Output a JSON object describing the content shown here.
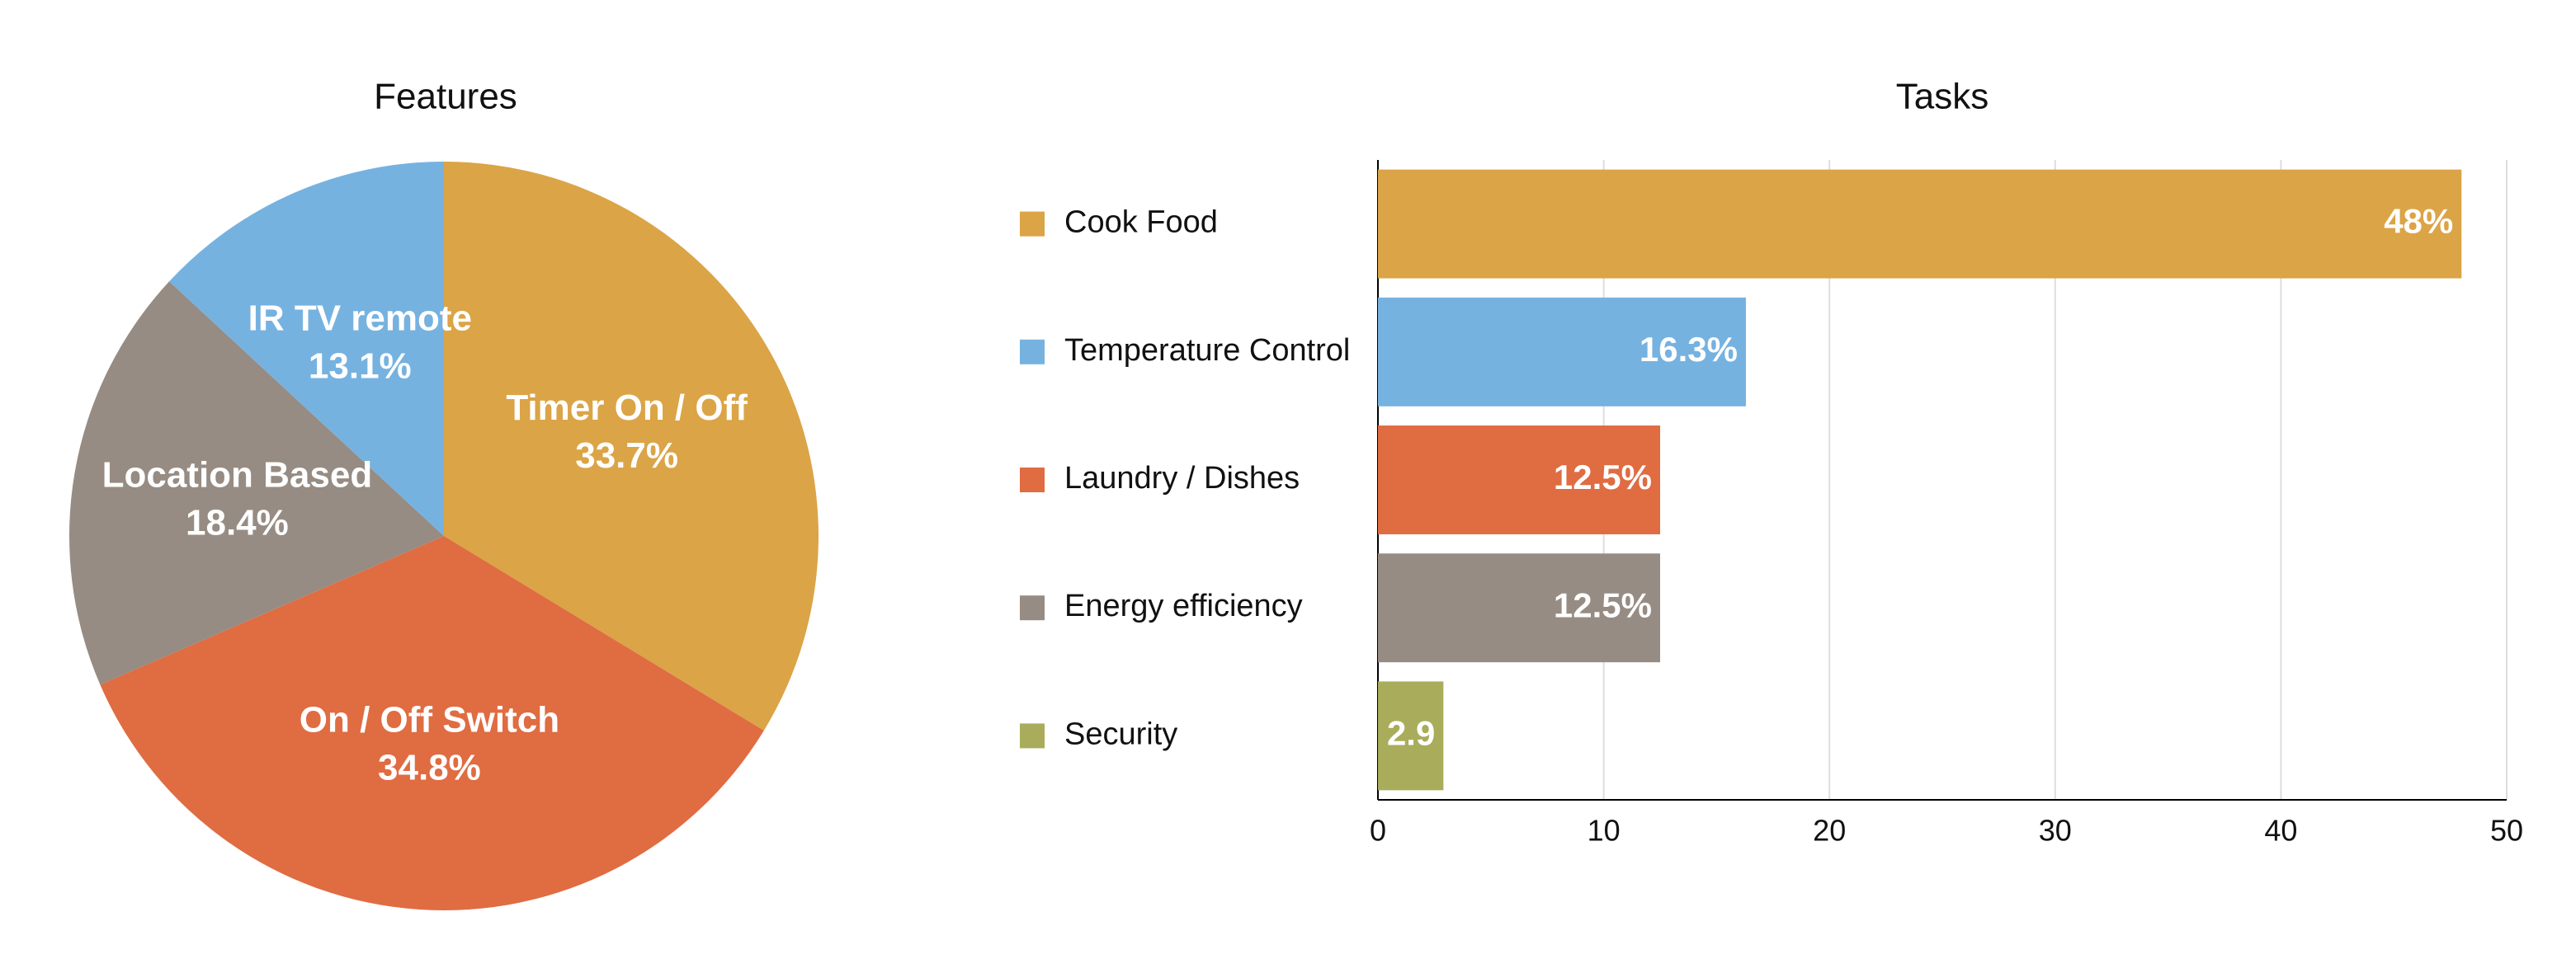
{
  "chart_data": [
    {
      "type": "pie",
      "title": "Features",
      "categories": [
        "Timer On / Off",
        "On / Off Switch",
        "Location Based",
        "IR TV remote"
      ],
      "values": [
        33.7,
        34.8,
        18.4,
        13.1
      ],
      "value_labels": [
        "33.7%",
        "34.8%",
        "18.4%",
        "13.1%"
      ],
      "colors": [
        "#dba447",
        "#e06c42",
        "#968c83",
        "#76b2e0"
      ]
    },
    {
      "type": "bar",
      "title": "Tasks",
      "orientation": "horizontal",
      "categories": [
        "Cook Food",
        "Temperature Control",
        "Laundry / Dishes",
        "Energy efficiency",
        "Security"
      ],
      "values": [
        48,
        16.3,
        12.5,
        12.5,
        2.9
      ],
      "value_labels": [
        "48%",
        "16.3%",
        "12.5%",
        "12.5%",
        "2.9"
      ],
      "colors": [
        "#dba447",
        "#76b2e0",
        "#e06c42",
        "#968c83",
        "#a9ac5a"
      ],
      "xlim": [
        0,
        50
      ],
      "xticks": [
        0,
        10,
        20,
        30,
        40,
        50
      ],
      "grid": true,
      "legend": "left"
    }
  ]
}
